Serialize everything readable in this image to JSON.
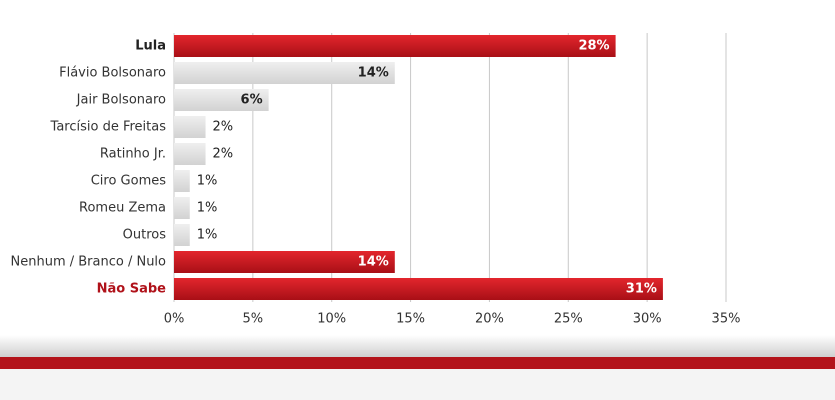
{
  "chart_data": {
    "type": "bar",
    "orientation": "horizontal",
    "categories": [
      "Lula",
      "Flávio Bolsonaro",
      "Jair Bolsonaro",
      "Tarcísio de Freitas",
      "Ratinho Jr.",
      "Ciro Gomes",
      "Romeu Zema",
      "Outros",
      "Nenhum / Branco / Nulo",
      "Não Sabe"
    ],
    "values": [
      28,
      14,
      6,
      2,
      2,
      1,
      1,
      1,
      14,
      31
    ],
    "value_labels": [
      "28%",
      "14%",
      "6%",
      "2%",
      "2%",
      "1%",
      "1%",
      "1%",
      "14%",
      "31%"
    ],
    "colors": [
      "#c8161d",
      "#dcdcdc",
      "#dcdcdc",
      "#dcdcdc",
      "#dcdcdc",
      "#dcdcdc",
      "#dcdcdc",
      "#dcdcdc",
      "#c8161d",
      "#c8161d"
    ],
    "label_colors": [
      "#222222",
      "#333333",
      "#333333",
      "#333333",
      "#333333",
      "#333333",
      "#333333",
      "#333333",
      "#333333",
      "#b0121a"
    ],
    "xlim": [
      0,
      35
    ],
    "xticks": [
      {
        "value": 0,
        "label": "0%"
      },
      {
        "value": 5,
        "label": "5%"
      },
      {
        "value": 10,
        "label": "10%"
      },
      {
        "value": 15,
        "label": "15%"
      },
      {
        "value": 20,
        "label": "20%"
      },
      {
        "value": 25,
        "label": "25%"
      },
      {
        "value": 30,
        "label": "30%"
      },
      {
        "value": 35,
        "label": "35%"
      }
    ],
    "grid": true
  }
}
